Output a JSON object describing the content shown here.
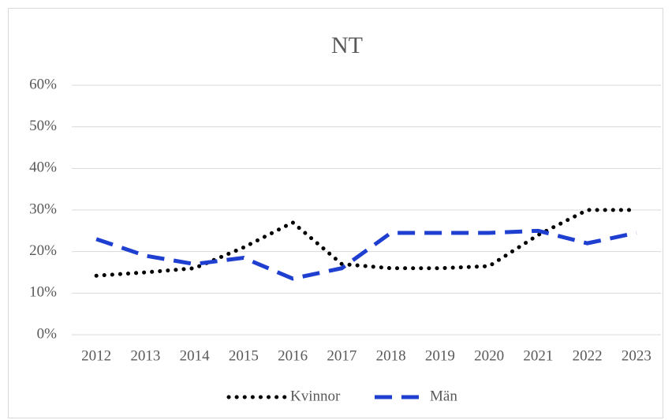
{
  "chart_data": {
    "type": "line",
    "title": "NT",
    "categories": [
      "2012",
      "2013",
      "2014",
      "2015",
      "2016",
      "2017",
      "2018",
      "2019",
      "2020",
      "2021",
      "2022",
      "2023"
    ],
    "series": [
      {
        "name": "Kvinnor",
        "color": "#000000",
        "dash": "dotted",
        "values": [
          14.2,
          15,
          16,
          21,
          27,
          17,
          16,
          16,
          16.5,
          24,
          30,
          30
        ]
      },
      {
        "name": "Män",
        "color": "#1f3fd0",
        "dash": "dashed",
        "values": [
          23,
          19,
          17,
          18.5,
          13.5,
          16,
          24.5,
          24.5,
          24.5,
          25,
          22,
          24.5
        ]
      }
    ],
    "ylim": [
      0,
      60
    ],
    "yticks": [
      {
        "value": 0,
        "label": "0%"
      },
      {
        "value": 10,
        "label": "10%"
      },
      {
        "value": 20,
        "label": "20%"
      },
      {
        "value": 30,
        "label": "30%"
      },
      {
        "value": 40,
        "label": "40%"
      },
      {
        "value": 50,
        "label": "50%"
      },
      {
        "value": 60,
        "label": "60%"
      }
    ],
    "grid": true,
    "legend": "bottom"
  }
}
